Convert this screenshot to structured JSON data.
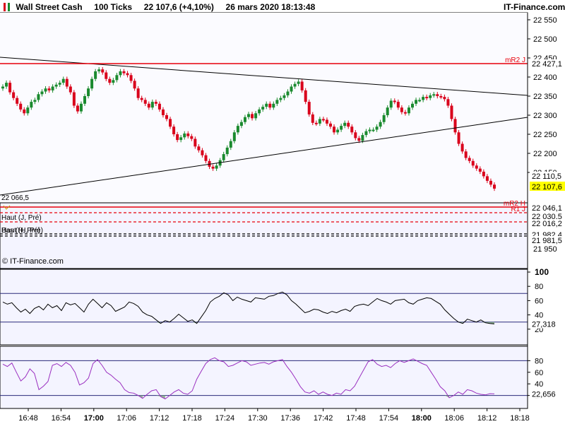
{
  "header": {
    "instrument": "Wall Street Cash",
    "timeframe": "100 Ticks",
    "price": "22 107,6 (+4,10%)",
    "datetime": "26 mars 2020 18:13:48",
    "brand": "IT-Finance.com",
    "icon": "candlestick-icon"
  },
  "main_panel": {
    "y_ticks": [
      "22 550",
      "22 500",
      "22 450",
      "22 400",
      "22 350",
      "22 300",
      "22 250",
      "22 200",
      "22 150"
    ],
    "left_label": "22 066,5",
    "watermark": "© IT-Finance.com",
    "current_price_label": "22 107,6",
    "prev_label": "22 110,5"
  },
  "lower_panel": {
    "y_ticks": [
      "21 950"
    ],
    "left_label_high": "Haut (J, Pré)",
    "left_label_low": "Haut (H, Pré)",
    "left_label_low_overlap": "Bas (H, Pré)"
  },
  "levels": [
    {
      "name": "mR2 J",
      "value": "22 427,1",
      "color": "#e8000b",
      "style": "solid"
    },
    {
      "name": "mR2 H",
      "value": "22 046,1",
      "color": "#e8000b",
      "style": "solid"
    },
    {
      "name": "R1 J",
      "value": "22 030,5",
      "color": "#e8000b",
      "style": "dashed"
    },
    {
      "name": "",
      "value": "22 016,2",
      "color": "#e8000b",
      "style": "dashed"
    },
    {
      "name": "",
      "value": "21 982,4",
      "color": "#000000",
      "style": "dashed"
    },
    {
      "name": "",
      "value": "21 981,5",
      "color": "#000000",
      "style": "dashed"
    }
  ],
  "osc1": {
    "y_ticks": [
      "100",
      "80",
      "60",
      "40",
      "20"
    ],
    "current": "27,318",
    "upper": 70,
    "lower": 30,
    "line_color": "#000000",
    "fill_color": "#7aa77a"
  },
  "osc2": {
    "y_ticks": [
      "80",
      "60",
      "40",
      "20"
    ],
    "current": "22,656",
    "upper": 80,
    "lower": 20,
    "line_color": "#9a2fc0",
    "fill_color": "#7aa77a"
  },
  "x_ticks": [
    "16:48",
    "16:54",
    "17:00",
    "17:06",
    "17:12",
    "17:18",
    "17:24",
    "17:30",
    "17:36",
    "17:42",
    "17:48",
    "17:54",
    "18:00",
    "18:06",
    "18:12",
    "18:18"
  ],
  "x_ticks_bold": [
    "17:00",
    "18:00"
  ],
  "colors": {
    "up": "#1a8a2e",
    "down": "#d9001b",
    "panel_bg": "#f4f4ff",
    "current_box": "#ffff00"
  },
  "chart_data": {
    "type": "candlestick",
    "title": "Wall Street Cash",
    "ylim": [
      21940,
      22580
    ],
    "path_close": [
      22375,
      22385,
      22360,
      22345,
      22330,
      22315,
      22305,
      22320,
      22335,
      22340,
      22355,
      22362,
      22370,
      22365,
      22375,
      22380,
      22385,
      22395,
      22375,
      22360,
      22325,
      22310,
      22330,
      22350,
      22370,
      22395,
      22415,
      22420,
      22412,
      22395,
      22385,
      22392,
      22405,
      22415,
      22410,
      22405,
      22390,
      22370,
      22345,
      22340,
      22330,
      22320,
      22335,
      22330,
      22315,
      22300,
      22290,
      22270,
      22250,
      22235,
      22242,
      22252,
      22245,
      22238,
      22218,
      22208,
      22195,
      22180,
      22165,
      22160,
      22168,
      22182,
      22198,
      22215,
      22232,
      22255,
      22272,
      22282,
      22295,
      22303,
      22292,
      22305,
      22315,
      22322,
      22330,
      22320,
      22330,
      22340,
      22345,
      22352,
      22362,
      22375,
      22382,
      22388,
      22365,
      22335,
      22302,
      22280,
      22278,
      22290,
      22288,
      22278,
      22270,
      22255,
      22262,
      22272,
      22280,
      22270,
      22255,
      22240,
      22233,
      22248,
      22258,
      22262,
      22262,
      22270,
      22282,
      22300,
      22320,
      22338,
      22335,
      22320,
      22308,
      22305,
      22320,
      22330,
      22340,
      22340,
      22348,
      22345,
      22352,
      22355,
      22350,
      22348,
      22342,
      22325,
      22290,
      22255,
      22225,
      22205,
      22188,
      22180,
      22168,
      22160,
      22152,
      22140,
      22128,
      22118,
      22107.6
    ],
    "series": [
      {
        "name": "Wall Street Cash",
        "last": 22107.6
      },
      {
        "name": "mR2 J",
        "value": 22427.1
      },
      {
        "name": "mR2 H",
        "value": 22046.1
      },
      {
        "name": "R1 J",
        "value": 22030.5
      }
    ],
    "trendlines": [
      {
        "from": [
          "16:45",
          22450
        ],
        "to": [
          "18:20",
          22345
        ]
      },
      {
        "from": [
          "16:45",
          22066.5
        ],
        "to": [
          "18:20",
          22290
        ]
      }
    ],
    "osc1_values": [
      58,
      55,
      57,
      50,
      44,
      48,
      42,
      49,
      52,
      47,
      55,
      50,
      53,
      46,
      57,
      54,
      56,
      50,
      44,
      55,
      62,
      56,
      50,
      57,
      53,
      45,
      48,
      51,
      58,
      56,
      52,
      44,
      40,
      38,
      33,
      28,
      32,
      30,
      35,
      41,
      36,
      31,
      33,
      28,
      37,
      46,
      58,
      63,
      66,
      71,
      68,
      60,
      65,
      62,
      60,
      58,
      64,
      63,
      62,
      66,
      67,
      70,
      72,
      68,
      60,
      55,
      49,
      43,
      45,
      48,
      47,
      44,
      42,
      45,
      43,
      46,
      48,
      45,
      52,
      54,
      55,
      53,
      58,
      63,
      60,
      58,
      55,
      60,
      61,
      62,
      57,
      55,
      60,
      62,
      64,
      63,
      59,
      55,
      47,
      41,
      35,
      30,
      28,
      34,
      32,
      30,
      33,
      29,
      28,
      27.318
    ],
    "osc2_values": [
      74,
      70,
      76,
      60,
      45,
      52,
      66,
      58,
      30,
      36,
      44,
      72,
      75,
      70,
      77,
      72,
      60,
      38,
      42,
      50,
      75,
      82,
      72,
      60,
      55,
      48,
      42,
      30,
      25,
      24,
      20,
      15,
      22,
      28,
      30,
      18,
      14,
      20,
      26,
      30,
      24,
      22,
      28,
      48,
      62,
      75,
      82,
      85,
      80,
      78,
      70,
      72,
      76,
      80,
      78,
      72,
      74,
      76,
      77,
      74,
      78,
      80,
      82,
      70,
      60,
      48,
      35,
      26,
      24,
      28,
      22,
      26,
      22,
      20,
      24,
      22,
      30,
      28,
      36,
      50,
      64,
      78,
      82,
      74,
      70,
      72,
      68,
      75,
      80,
      77,
      80,
      83,
      79,
      75,
      72,
      60,
      48,
      35,
      28,
      16,
      20,
      26,
      22,
      30,
      28,
      24,
      22,
      21,
      23,
      22.656
    ]
  }
}
